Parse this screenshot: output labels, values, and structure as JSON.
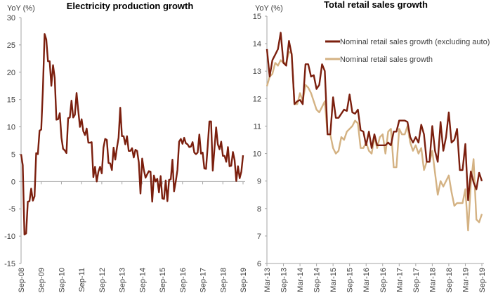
{
  "chart_data": [
    {
      "type": "line",
      "title": "Electricity production growth",
      "ylabel": "YoY (%)",
      "ylim": [
        -15,
        30
      ],
      "yticks": [
        30,
        25,
        20,
        15,
        10,
        5,
        0,
        -5,
        -10,
        -15
      ],
      "negative_tick_color": "#e8262a",
      "frequency": "monthly",
      "xlim": [
        "Sep-08",
        "Sep-19"
      ],
      "xticks": [
        "Sep-08",
        "Sep-09",
        "Sep-10",
        "Sep-11",
        "Sep-12",
        "Sep-13",
        "Sep-14",
        "Sep-15",
        "Sep-16",
        "Sep-17",
        "Sep-18",
        "Sep-19"
      ],
      "grid": false,
      "series": [
        {
          "color": "#7b1f0e",
          "values": [
            5,
            3,
            -9.7,
            -9.5,
            -3.7,
            -3.6,
            -1.3,
            -3.5,
            -2.7,
            5.2,
            5,
            9.3,
            9.5,
            17,
            27,
            26,
            22,
            22,
            17.5,
            21.3,
            19,
            11.3,
            11.4,
            12.5,
            8,
            6,
            5.7,
            5.2,
            11.6,
            11.7,
            14.8,
            11.7,
            12.2,
            16.2,
            13,
            10,
            11.4,
            9.2,
            8.5,
            9.7,
            7.1,
            7.1,
            7.2,
            0.8,
            2.7,
            0,
            1.8,
            2.7,
            1.5,
            6.2,
            7.8,
            7.6,
            3.4,
            3.3,
            2.1,
            6.2,
            4,
            6.2,
            8,
            13.5,
            8.3,
            8.3,
            6.8,
            8.3,
            5.6,
            5.6,
            6.1,
            4.4,
            5.8,
            5.6,
            3.5,
            -2.2,
            4.2,
            2.1,
            0.7,
            1.3,
            1.9,
            1.8,
            -3.7,
            1.1,
            0,
            0.5,
            -2,
            1,
            -3.1,
            -3.2,
            0.2,
            -3.6,
            0.3,
            0.4,
            4,
            -1.8,
            0,
            2.1,
            7.3,
            7.8,
            6.9,
            8,
            7,
            6.8,
            6.3,
            6.4,
            7.2,
            5.3,
            5,
            5.3,
            8.6,
            5.1,
            5.3,
            2.4,
            2.3,
            6.5,
            11,
            11,
            2,
            6,
            9.9,
            6.8,
            5.9,
            7.3,
            4.7,
            4.7,
            3.6,
            6.3,
            2.8,
            2.9,
            5.4,
            3.9,
            0.1,
            2.8,
            0.6,
            1.8,
            4.8
          ]
        }
      ]
    },
    {
      "type": "line",
      "title": "Total retail sales growth",
      "ylabel": "YoY (%)",
      "ylim": [
        6,
        15
      ],
      "yticks": [
        15,
        14,
        13,
        12,
        11,
        10,
        9,
        8,
        7,
        6
      ],
      "frequency": "monthly",
      "xlim": [
        "Mar-13",
        "Sep-19"
      ],
      "xticks": [
        "Mar-13",
        "Sep-13",
        "Mar-14",
        "Sep-14",
        "Mar-15",
        "Sep-15",
        "Mar-16",
        "Sep-16",
        "Mar-17",
        "Sep-17",
        "Mar-18",
        "Sep-18",
        "Mar-19",
        "Sep-19"
      ],
      "grid": false,
      "legend": "top-right",
      "series": [
        {
          "name": "Nominal retail sales growth (excluding auto)",
          "color": "#7b1f0e",
          "values": [
            13.8,
            12.8,
            13.4,
            13.6,
            13.8,
            14.4,
            13.3,
            13.2,
            14.1,
            13.6,
            11.8,
            11.9,
            11.95,
            11.8,
            13.25,
            13.25,
            12.8,
            12.85,
            12.35,
            12.5,
            13.25,
            13,
            10.7,
            10.7,
            12.05,
            11.3,
            11.3,
            11.45,
            11.6,
            11.55,
            12.15,
            11.5,
            11.45,
            11.6,
            10.85,
            10.8,
            10.3,
            10.8,
            10.2,
            10.7,
            10.3,
            10.3,
            10.3,
            10.3,
            10.4,
            10.3,
            10.8,
            10.8,
            11.2,
            11.2,
            11.2,
            11.15,
            10.6,
            10.4,
            10.6,
            10.4,
            11.05,
            10.7,
            9.7,
            9.7,
            11,
            10.1,
            9.7,
            11.15,
            10.1,
            10.6,
            11.5,
            10.4,
            10.5,
            10.9,
            9.4,
            9.4,
            10.35,
            8.3,
            9.35,
            8.95,
            8.7,
            9.3,
            9
          ]
        },
        {
          "name": "Nominal retail sales growth",
          "color": "#d4b283",
          "values": [
            12.45,
            12.8,
            12.9,
            13.3,
            13.2,
            13.4,
            13.3,
            13.3,
            13.7,
            13.65,
            11.8,
            11.8,
            12.2,
            11.9,
            12.5,
            12.4,
            12.2,
            11.9,
            11.6,
            11.5,
            11.7,
            11.9,
            10.7,
            10.7,
            10.2,
            10,
            10.1,
            10.6,
            10.5,
            10.8,
            10.9,
            11,
            11.2,
            11.1,
            10.2,
            10.2,
            10.4,
            10.1,
            10,
            10.6,
            10.2,
            10.6,
            10.7,
            10,
            10.8,
            10.9,
            9.5,
            9.5,
            10.9,
            10.7,
            10.7,
            11,
            10.4,
            10.1,
            10.3,
            10,
            10.2,
            9.4,
            9.7,
            9.7,
            10.1,
            9.3,
            8.5,
            9,
            8.8,
            9,
            9.2,
            8.6,
            8.1,
            8.2,
            8.2,
            8.2,
            8.7,
            7.2,
            8.9,
            9.8,
            7.6,
            7.5,
            7.8
          ]
        }
      ]
    }
  ]
}
